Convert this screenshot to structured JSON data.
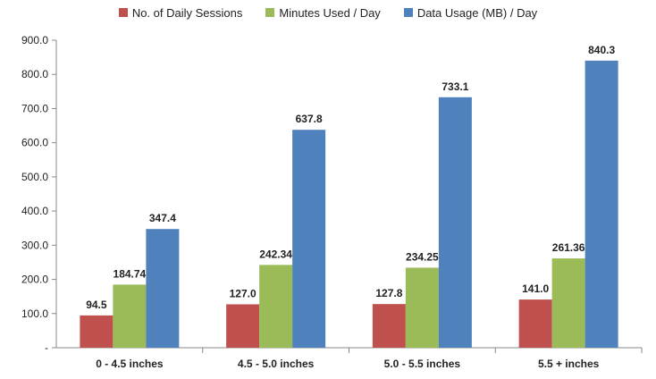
{
  "chart_data": {
    "type": "bar",
    "categories": [
      "0 - 4.5 inches",
      "4.5 - 5.0 inches",
      "5.0 - 5.5 inches",
      "5.5 + inches"
    ],
    "series": [
      {
        "name": "No. of Daily Sessions",
        "color": "#c0504d",
        "values": [
          94.5,
          127.0,
          127.8,
          141.0
        ],
        "labels": [
          "94.5",
          "127.0",
          "127.8",
          "141.0"
        ]
      },
      {
        "name": "Minutes Used / Day",
        "color": "#9bbb59",
        "values": [
          184.74,
          242.34,
          234.25,
          261.36
        ],
        "labels": [
          "184.74",
          "242.34",
          "234.25",
          "261.36"
        ]
      },
      {
        "name": "Data Usage (MB) / Day",
        "color": "#4f81bd",
        "values": [
          347.4,
          637.8,
          733.1,
          840.3
        ],
        "labels": [
          "347.4",
          "637.8",
          "733.1",
          "840.3"
        ]
      }
    ],
    "ylim": [
      0,
      900
    ],
    "ytick_labels": [
      "-",
      "100.0",
      "200.0",
      "300.0",
      "400.0",
      "500.0",
      "600.0",
      "700.0",
      "800.0",
      "900.0"
    ],
    "legend_position": "top",
    "grid": false
  }
}
